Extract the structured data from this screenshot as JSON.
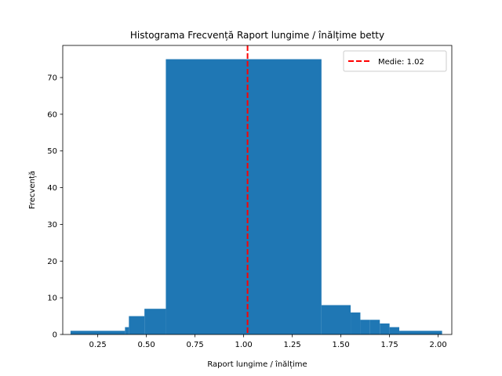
{
  "chart_data": {
    "type": "bar",
    "title": "Histograma Frecvență Raport lungime / înălțime betty",
    "xlabel": "Raport lungime / înălțime",
    "ylabel": "Frecvență",
    "xlim": [
      0.07,
      2.07
    ],
    "ylim": [
      0,
      78.75
    ],
    "xticks": [
      0.25,
      0.5,
      0.75,
      1.0,
      1.25,
      1.5,
      1.75,
      2.0
    ],
    "xtick_labels": [
      "0.25",
      "0.50",
      "0.75",
      "1.00",
      "1.25",
      "1.50",
      "1.75",
      "2.00"
    ],
    "yticks": [
      0,
      10,
      20,
      30,
      40,
      50,
      60,
      70
    ],
    "ytick_labels": [
      "0",
      "10",
      "20",
      "30",
      "40",
      "50",
      "60",
      "70"
    ],
    "bar_color": "#1f77b4",
    "bins": [
      {
        "x0": 0.11,
        "x1": 0.39,
        "count": 1
      },
      {
        "x0": 0.39,
        "x1": 0.41,
        "count": 2
      },
      {
        "x0": 0.41,
        "x1": 0.49,
        "count": 5
      },
      {
        "x0": 0.49,
        "x1": 0.6,
        "count": 7
      },
      {
        "x0": 0.6,
        "x1": 1.4,
        "count": 75
      },
      {
        "x0": 1.4,
        "x1": 1.55,
        "count": 8
      },
      {
        "x0": 1.55,
        "x1": 1.6,
        "count": 6
      },
      {
        "x0": 1.6,
        "x1": 1.65,
        "count": 4
      },
      {
        "x0": 1.65,
        "x1": 1.7,
        "count": 4
      },
      {
        "x0": 1.7,
        "x1": 1.75,
        "count": 3
      },
      {
        "x0": 1.75,
        "x1": 1.8,
        "count": 2
      },
      {
        "x0": 1.8,
        "x1": 2.02,
        "count": 1
      }
    ],
    "mean": {
      "value": 1.02,
      "label": "Medie: 1.02",
      "color": "#ff0000",
      "style": "dashed"
    },
    "legend": {
      "position": "top-right"
    }
  }
}
